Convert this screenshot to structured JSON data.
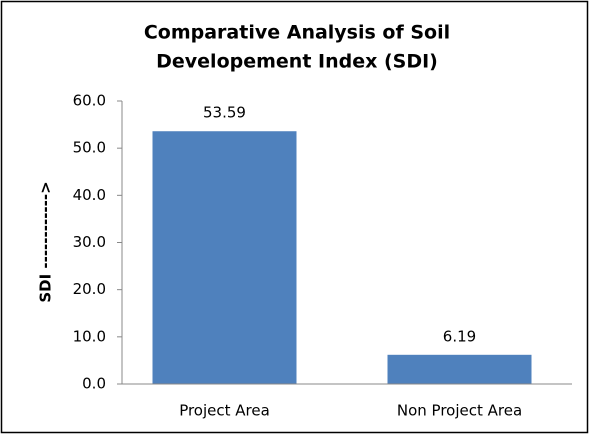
{
  "chart_data": {
    "type": "bar",
    "title": [
      "Comparative Analysis of Soil",
      "Developement Index (SDI)"
    ],
    "y_label": "SDI ------------>",
    "categories": [
      "Project Area",
      "Non Project Area"
    ],
    "values": [
      53.59,
      6.19
    ],
    "color": "#4f81bd",
    "ylim": [
      0,
      60
    ],
    "yticks": [
      {
        "value": 0,
        "label": "0.0"
      },
      {
        "value": 10,
        "label": "10.0"
      },
      {
        "value": 20,
        "label": "20.0"
      },
      {
        "value": 30,
        "label": "30.0"
      },
      {
        "value": 40,
        "label": "40.0"
      },
      {
        "value": 50,
        "label": "50.0"
      },
      {
        "value": 60,
        "label": "60.0"
      }
    ],
    "grid": false
  }
}
